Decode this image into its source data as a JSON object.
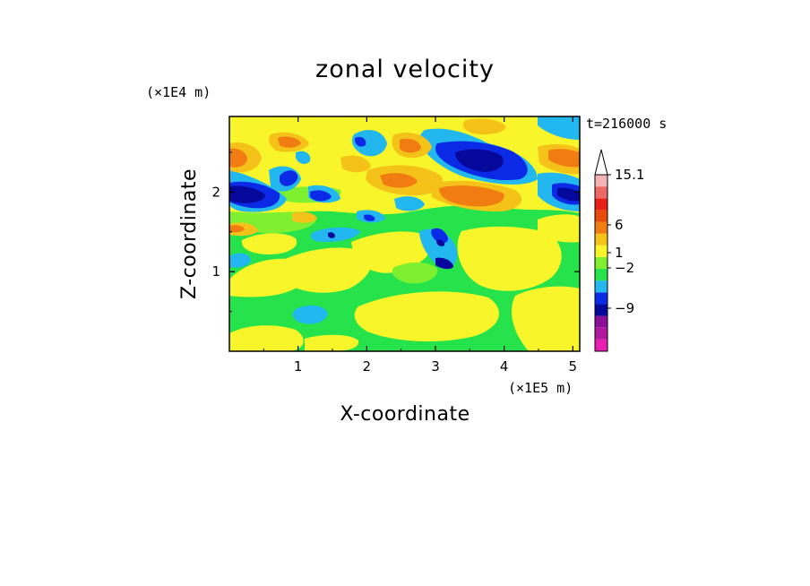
{
  "chart_data": {
    "type": "heatmap",
    "title": "zonal velocity",
    "xlabel": "X-coordinate",
    "ylabel": "Z-coordinate",
    "x_unit": "(×1E5 m)",
    "y_unit": "(×1E4 m)",
    "time_label": "t=216000 s",
    "xlim": [
      0,
      5.1
    ],
    "ylim": [
      0,
      2.95
    ],
    "x_ticks": [
      "1",
      "2",
      "3",
      "4",
      "5"
    ],
    "y_ticks": [
      "1",
      "2"
    ],
    "x_tick_values": [
      1,
      2,
      3,
      4,
      5
    ],
    "y_tick_values": [
      1,
      2
    ],
    "colorbar": {
      "colors": [
        "#e81eb4",
        "#b2189f",
        "#8c0f9a",
        "#06089c",
        "#0a2ae6",
        "#22b7ee",
        "#26e34c",
        "#7ef030",
        "#f8f62a",
        "#f5c21a",
        "#f07c12",
        "#e74c0c",
        "#e9201a",
        "#ef6868",
        "#f5b4b4"
      ],
      "labels": [
        "15.1",
        "6",
        "1",
        "-2",
        "-9"
      ],
      "label_values": [
        15.1,
        6,
        1,
        -2,
        -9
      ],
      "extend": "max"
    }
  }
}
